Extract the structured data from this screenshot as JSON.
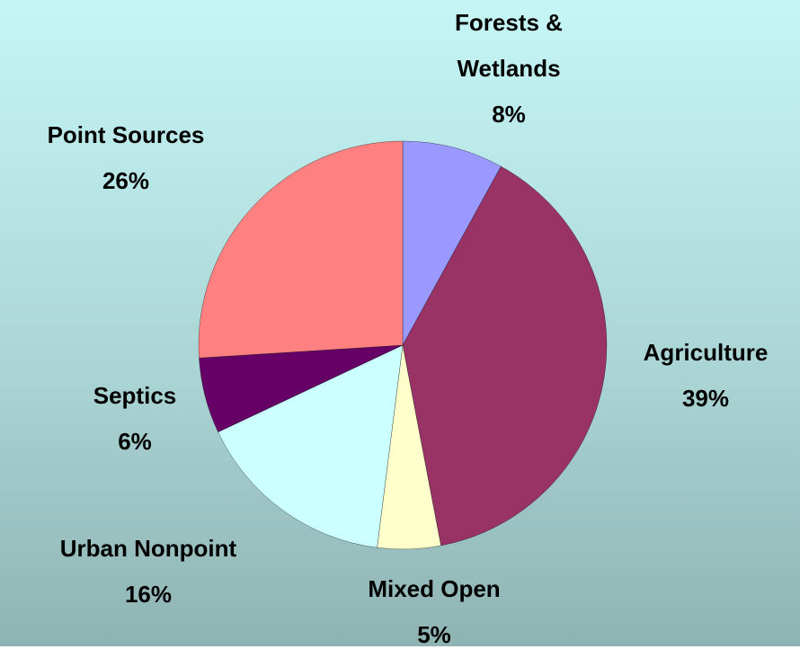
{
  "chart_data": {
    "type": "pie",
    "categories": [
      "Forests & Wetlands",
      "Agriculture",
      "Mixed Open",
      "Urban Nonpoint",
      "Septics",
      "Point Sources"
    ],
    "values": [
      8,
      39,
      5,
      16,
      6,
      26
    ],
    "value_labels": [
      "8%",
      "39%",
      "5%",
      "16%",
      "6%",
      "26%"
    ],
    "colors": [
      "#9999ff",
      "#993366",
      "#ffffcc",
      "#ccffff",
      "#660066",
      "#ff8080"
    ]
  }
}
